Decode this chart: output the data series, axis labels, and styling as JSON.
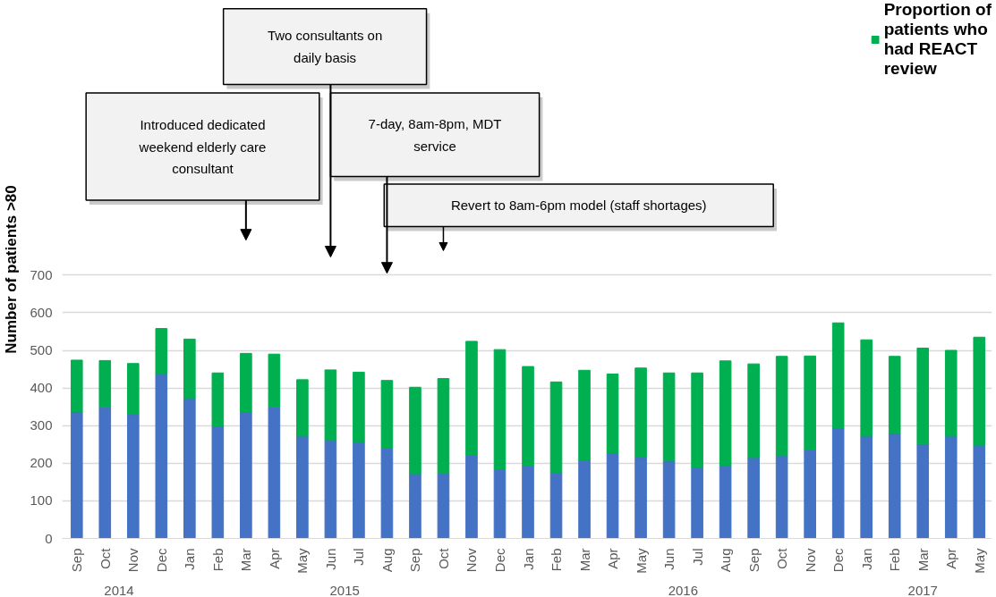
{
  "chart_data": {
    "type": "bar",
    "stacked": true,
    "ylabel": "Number of patients >80",
    "x": [
      "2014-09",
      "2014-10",
      "2014-11",
      "2014-12",
      "2015-01",
      "2015-02",
      "2015-03",
      "2015-04",
      "2015-05",
      "2015-06",
      "2015-07",
      "2015-08",
      "2015-09",
      "2015-10",
      "2015-11",
      "2015-12",
      "2016-01",
      "2016-02",
      "2016-03",
      "2016-04",
      "2016-05",
      "2016-06",
      "2016-07",
      "2016-08",
      "2016-09",
      "2016-10",
      "2016-11",
      "2016-12",
      "2017-01",
      "2017-02",
      "2017-03",
      "2017-04",
      "2017-05"
    ],
    "series": [
      {
        "color": "#4472c4",
        "values": [
          337,
          350,
          330,
          438,
          372,
          298,
          335,
          350,
          272,
          262,
          257,
          240,
          172,
          173,
          221,
          183,
          193,
          176,
          208,
          228,
          216,
          206,
          188,
          195,
          215,
          220,
          237,
          294,
          272,
          280,
          251,
          272,
          248
        ]
      },
      {
        "name": "Proportion of patients who had REACT review",
        "color": "#00b050",
        "values": [
          137,
          123,
          135,
          120,
          158,
          142,
          157,
          140,
          150,
          186,
          185,
          180,
          230,
          252,
          303,
          319,
          264,
          240,
          239,
          209,
          237,
          234,
          252,
          277,
          249,
          264,
          248,
          279,
          256,
          204,
          255,
          228,
          287
        ]
      }
    ],
    "xticks": [
      {
        "value": "2014-09",
        "label": "Sep"
      },
      {
        "value": "2014-10",
        "label": "Oct"
      },
      {
        "value": "2014-11",
        "label": "Nov"
      },
      {
        "value": "2014-12",
        "label": "Dec"
      },
      {
        "value": "2015-01",
        "label": "Jan"
      },
      {
        "value": "2015-02",
        "label": "Feb"
      },
      {
        "value": "2015-03",
        "label": "Mar"
      },
      {
        "value": "2015-04",
        "label": "Apr"
      },
      {
        "value": "2015-05",
        "label": "May"
      },
      {
        "value": "2015-06",
        "label": "Jun"
      },
      {
        "value": "2015-07",
        "label": "Jul"
      },
      {
        "value": "2015-08",
        "label": "Aug"
      },
      {
        "value": "2015-09",
        "label": "Sep"
      },
      {
        "value": "2015-10",
        "label": "Oct"
      },
      {
        "value": "2015-11",
        "label": "Nov"
      },
      {
        "value": "2015-12",
        "label": "Dec"
      },
      {
        "value": "2016-01",
        "label": "Jan"
      },
      {
        "value": "2016-02",
        "label": "Feb"
      },
      {
        "value": "2016-03",
        "label": "Mar"
      },
      {
        "value": "2016-04",
        "label": "Apr"
      },
      {
        "value": "2016-05",
        "label": "May"
      },
      {
        "value": "2016-06",
        "label": "Jun"
      },
      {
        "value": "2016-07",
        "label": "Jul"
      },
      {
        "value": "2016-08",
        "label": "Aug"
      },
      {
        "value": "2016-09",
        "label": "Sep"
      },
      {
        "value": "2016-10",
        "label": "Oct"
      },
      {
        "value": "2016-11",
        "label": "Nov"
      },
      {
        "value": "2016-12",
        "label": "Dec"
      },
      {
        "value": "2017-01",
        "label": "Jan"
      },
      {
        "value": "2017-02",
        "label": "Feb"
      },
      {
        "value": "2017-03",
        "label": "Mar"
      },
      {
        "value": "2017-04",
        "label": "Apr"
      },
      {
        "value": "2017-05",
        "label": "May"
      }
    ],
    "xlim": [
      "2014-08-16",
      "2017-05-15"
    ],
    "ylim": [
      0,
      700
    ],
    "yticks": [
      0,
      100,
      200,
      300,
      400,
      500,
      600,
      700
    ],
    "grid": "y",
    "legend": "top right",
    "annotations": [
      "Introduced dedicated weekend elderly care consultant",
      "Two consultants on daily basis",
      "7-day, 8am-8pm, MDT service",
      "Revert to 8am-6pm model (staff shortages)",
      "2014",
      "2015",
      "2016",
      "2017"
    ]
  }
}
